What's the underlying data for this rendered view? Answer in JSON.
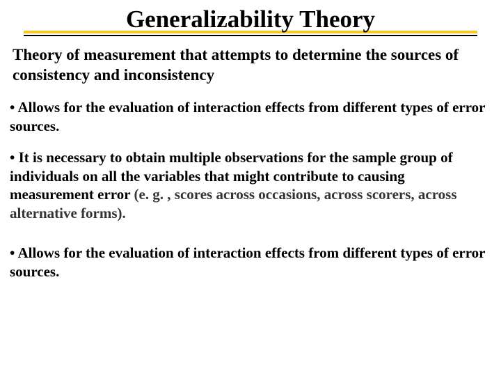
{
  "title": {
    "text": "Generalizability Theory",
    "fontsize": 35,
    "color": "#000000",
    "underline_color_primary": "#f5c826",
    "underline_color_secondary": "#000000"
  },
  "definition": {
    "text": "Theory of measurement that attempts to determine the sources of consistency and inconsistency",
    "fontsize": 23,
    "color": "#000000"
  },
  "bullets": [
    {
      "prefix": "• ",
      "text": "Allows for the evaluation of interaction effects from different types of error sources.",
      "paren": "",
      "fontsize": 21
    },
    {
      "prefix": "• ",
      "text": "It is necessary to obtain multiple observations for the sample group of individuals on all the variables that might contribute to causing measurement error ",
      "paren": "(e. g. , scores across occasions, across scorers, across alternative forms).",
      "fontsize": 21
    },
    {
      "prefix": "• ",
      "text": "Allows for the evaluation of interaction effects from different types of error sources.",
      "paren": "",
      "fontsize": 21
    }
  ],
  "paren_color": "#333333",
  "background_color": "#ffffff"
}
